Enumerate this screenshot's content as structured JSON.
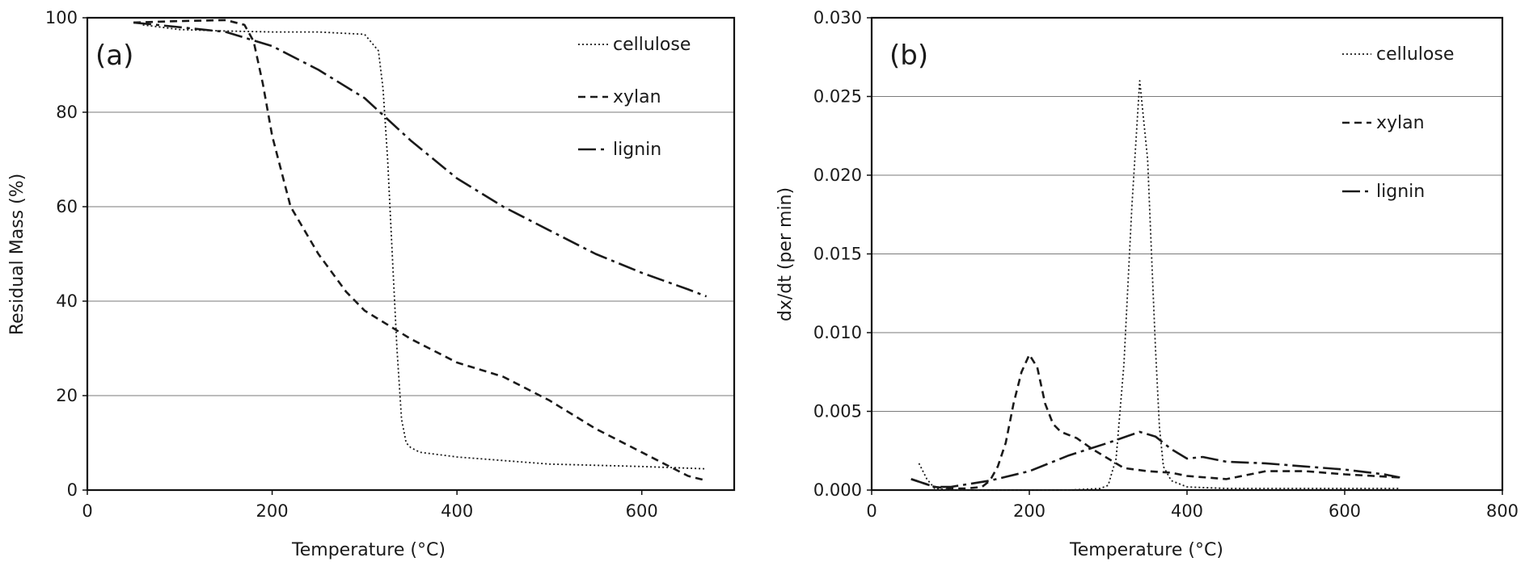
{
  "chart_data": [
    {
      "type": "line",
      "panel_label": "(a)",
      "xlabel": "Temperature (°C)",
      "ylabel": "Residual Mass (%)",
      "xlim": [
        0,
        700
      ],
      "ylim": [
        0,
        100
      ],
      "xticks": [
        0,
        200,
        400,
        600
      ],
      "yticks": [
        0,
        20,
        40,
        60,
        80,
        100
      ],
      "xtick_labels": [
        "0",
        "200",
        "400",
        "600"
      ],
      "ytick_labels": [
        "0",
        "20",
        "40",
        "60",
        "80",
        "100"
      ],
      "grid": "horizontal",
      "legend_position": "top-right",
      "series": [
        {
          "name": "cellulose",
          "style": "dotted",
          "x": [
            60,
            100,
            150,
            200,
            250,
            300,
            315,
            320,
            325,
            330,
            335,
            340,
            345,
            350,
            355,
            360,
            400,
            500,
            600,
            670
          ],
          "y": [
            98.5,
            97.5,
            97.2,
            97,
            97,
            96.5,
            93,
            85,
            70,
            50,
            30,
            15,
            10,
            9,
            8.5,
            8,
            7,
            5.5,
            5,
            4.5
          ]
        },
        {
          "name": "xylan",
          "style": "dashed",
          "x": [
            50,
            100,
            150,
            170,
            180,
            190,
            200,
            220,
            250,
            280,
            300,
            350,
            400,
            450,
            500,
            550,
            600,
            650,
            670
          ],
          "y": [
            99,
            99.3,
            99.5,
            98.5,
            95,
            86,
            75,
            60,
            50,
            42,
            38,
            32,
            27,
            24,
            19,
            13,
            8,
            3,
            2
          ]
        },
        {
          "name": "lignin",
          "style": "dashdot",
          "x": [
            50,
            100,
            150,
            200,
            250,
            300,
            350,
            400,
            450,
            500,
            550,
            600,
            650,
            670
          ],
          "y": [
            99,
            98,
            97,
            94,
            89,
            83,
            74,
            66,
            60,
            55,
            50,
            46,
            42.5,
            41
          ]
        }
      ]
    },
    {
      "type": "line",
      "panel_label": "(b)",
      "xlabel": "Temperature (°C)",
      "ylabel": "dx/dt (per min)",
      "xlim": [
        0,
        800
      ],
      "ylim": [
        0,
        0.03
      ],
      "xticks": [
        0,
        200,
        400,
        600,
        800
      ],
      "yticks": [
        0,
        0.005,
        0.01,
        0.015,
        0.02,
        0.025,
        0.03
      ],
      "xtick_labels": [
        "0",
        "200",
        "400",
        "600",
        "800"
      ],
      "ytick_labels": [
        "0.000",
        "0.005",
        "0.010",
        "0.015",
        "0.020",
        "0.025",
        "0.030"
      ],
      "grid": "horizontal",
      "legend_position": "top-right",
      "series": [
        {
          "name": "cellulose",
          "style": "dotted",
          "x": [
            60,
            70,
            80,
            100,
            150,
            200,
            250,
            290,
            300,
            310,
            320,
            330,
            340,
            350,
            355,
            360,
            365,
            370,
            380,
            400,
            450,
            500,
            600,
            670
          ],
          "y": [
            0.0017,
            0.0007,
            0.0001,
            0.0,
            0.0,
            0.0,
            0.0,
            0.0001,
            0.0003,
            0.002,
            0.008,
            0.018,
            0.026,
            0.021,
            0.015,
            0.009,
            0.004,
            0.0015,
            0.0006,
            0.0002,
            0.0001,
            0.0001,
            0.0001,
            0.0001
          ]
        },
        {
          "name": "xylan",
          "style": "dashed",
          "x": [
            50,
            80,
            100,
            120,
            140,
            150,
            160,
            170,
            180,
            190,
            200,
            210,
            220,
            230,
            240,
            260,
            280,
            300,
            320,
            350,
            380,
            400,
            450,
            500,
            550,
            600,
            670
          ],
          "y": [
            0.0007,
            0.0002,
            0.0001,
            0.0001,
            0.0002,
            0.0006,
            0.0015,
            0.003,
            0.0055,
            0.0075,
            0.0086,
            0.0078,
            0.0055,
            0.0042,
            0.0037,
            0.0033,
            0.0026,
            0.002,
            0.0014,
            0.0012,
            0.0011,
            0.0009,
            0.0007,
            0.0012,
            0.0012,
            0.001,
            0.0008
          ]
        },
        {
          "name": "lignin",
          "style": "dashdot",
          "x": [
            50,
            80,
            100,
            150,
            200,
            250,
            300,
            340,
            360,
            380,
            400,
            420,
            450,
            500,
            550,
            600,
            650,
            670
          ],
          "y": [
            0.0007,
            0.0002,
            0.0002,
            0.0006,
            0.0012,
            0.0022,
            0.003,
            0.0037,
            0.0034,
            0.0026,
            0.002,
            0.0021,
            0.0018,
            0.0017,
            0.0015,
            0.0013,
            0.001,
            0.0008
          ]
        }
      ]
    }
  ]
}
